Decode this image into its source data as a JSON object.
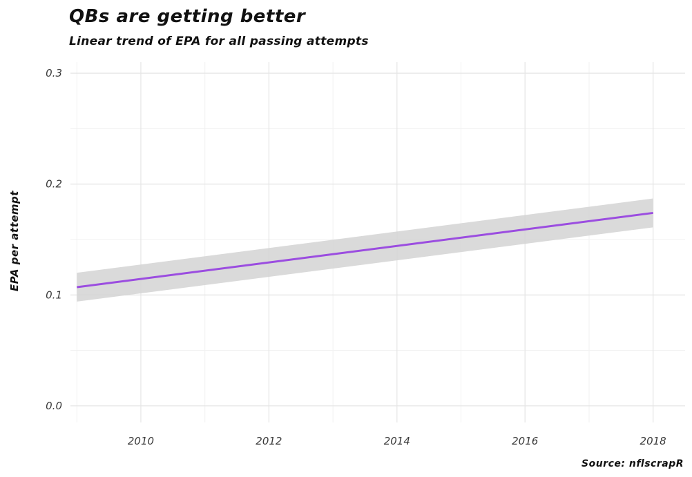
{
  "chart_data": {
    "type": "line",
    "title": "QBs are getting better",
    "subtitle": "Linear trend of EPA for all passing attempts",
    "xlabel": "",
    "ylabel": "EPA per attempt",
    "caption": "Source: nflscrapR",
    "xlim": [
      2008.9,
      2018.5
    ],
    "ylim": [
      -0.015,
      0.31
    ],
    "x_ticks": [
      2010,
      2012,
      2014,
      2016,
      2018
    ],
    "y_ticks": [
      0.0,
      0.1,
      0.2,
      0.3
    ],
    "x_tick_labels": [
      "2010",
      "2012",
      "2014",
      "2016",
      "2018"
    ],
    "y_tick_labels": [
      "0.0",
      "0.1",
      "0.2",
      "0.3"
    ],
    "grid": true,
    "legend": "none",
    "series": [
      {
        "x": [
          2009,
          2018
        ],
        "values": [
          0.107,
          0.174
        ],
        "ci_lower": [
          0.094,
          0.161
        ],
        "ci_upper": [
          0.12,
          0.187
        ],
        "color": "#9b4de0",
        "band_color": "#d4d4d4"
      }
    ]
  }
}
